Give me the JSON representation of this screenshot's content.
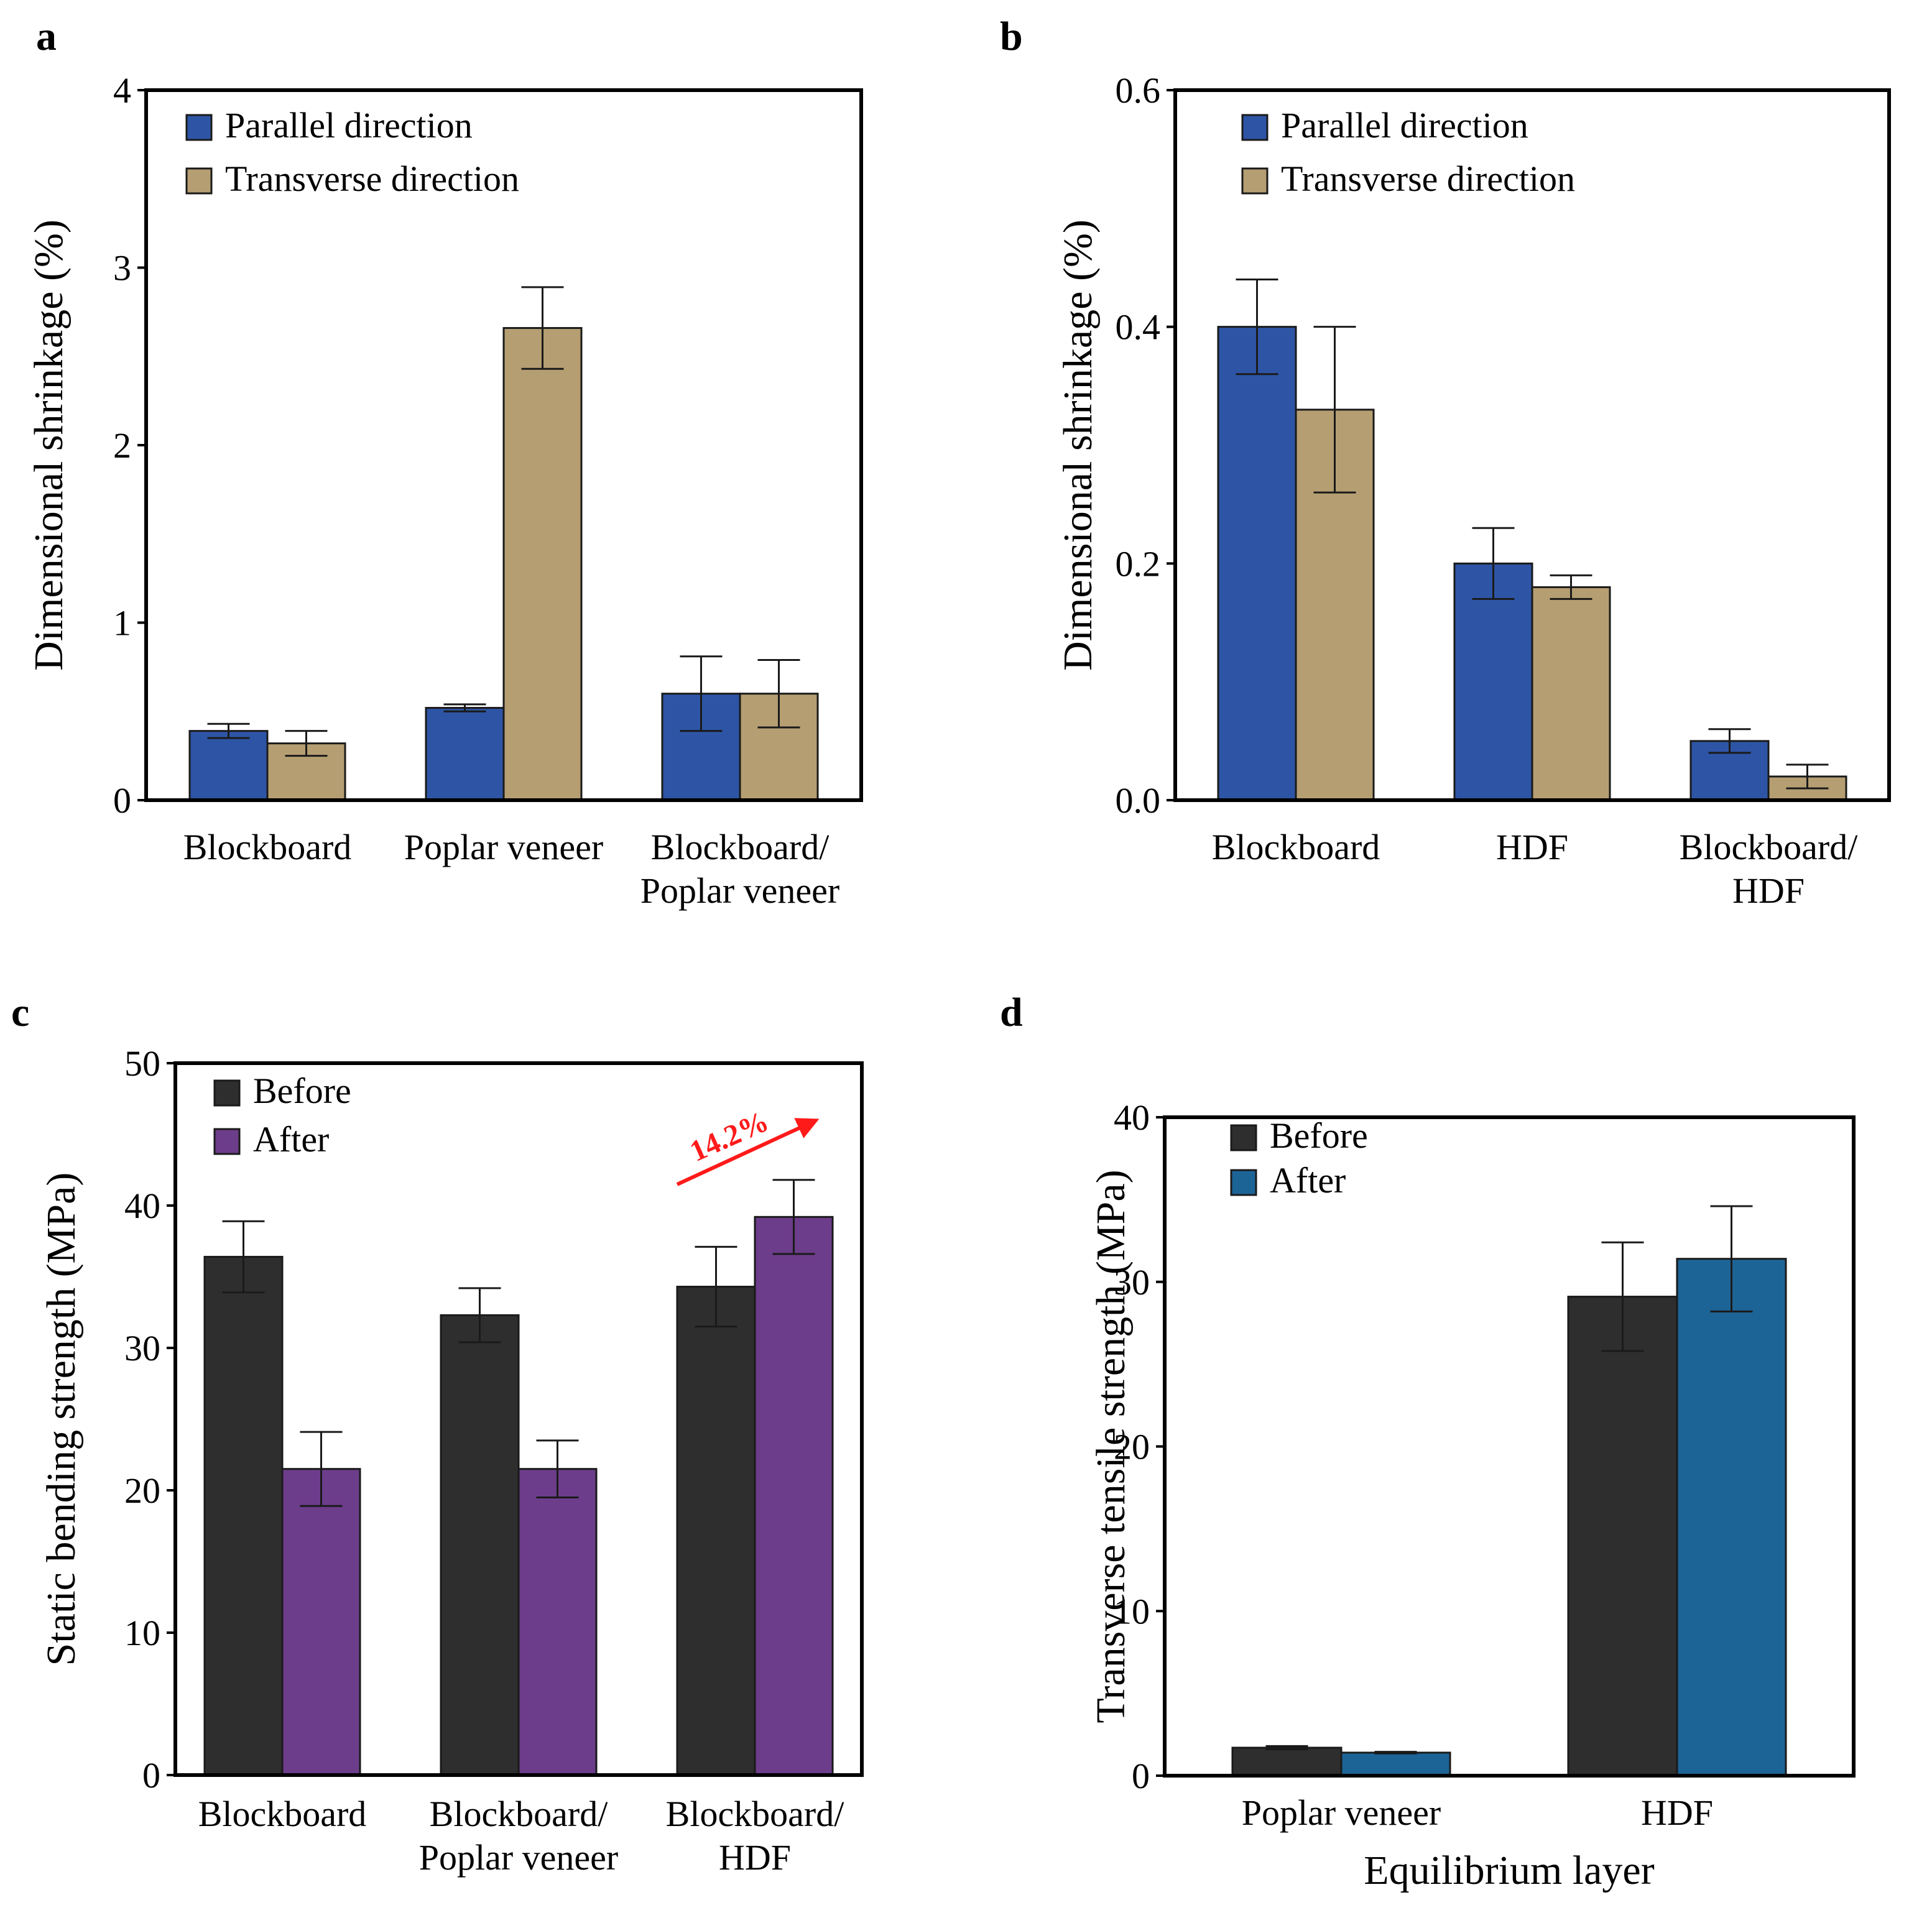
{
  "chart_data": [
    {
      "panel": "a",
      "type": "bar",
      "ylabel": "Dimensional shrinkage (%)",
      "xlabel": "",
      "ylim": [
        0,
        4
      ],
      "yticks": [
        0,
        1,
        2,
        3,
        4
      ],
      "ytick_labels": [
        "0",
        "1",
        "2",
        "3",
        "4"
      ],
      "grid": false,
      "legend_position": "top-left",
      "categories": [
        [
          "Blockboard"
        ],
        [
          "Poplar veneer"
        ],
        [
          "Blockboard/",
          "Poplar veneer"
        ]
      ],
      "series": [
        {
          "name": "Parallel direction",
          "color": "#2e55a5",
          "values": [
            0.39,
            0.52,
            0.6
          ],
          "errors": [
            0.04,
            0.02,
            0.21
          ]
        },
        {
          "name": "Transverse direction",
          "color": "#b59e72",
          "values": [
            0.32,
            2.66,
            0.6
          ],
          "errors": [
            0.07,
            0.23,
            0.19
          ]
        }
      ],
      "annotations": []
    },
    {
      "panel": "b",
      "type": "bar",
      "ylabel": "Dimensional shrinkage (%)",
      "xlabel": "",
      "ylim": [
        0,
        0.6
      ],
      "yticks": [
        0,
        0.2,
        0.4,
        0.6
      ],
      "ytick_labels": [
        "0.0",
        "0.2",
        "0.4",
        "0.6"
      ],
      "grid": false,
      "legend_position": "top-left",
      "categories": [
        [
          "Blockboard"
        ],
        [
          "HDF"
        ],
        [
          "Blockboard/",
          "HDF"
        ]
      ],
      "series": [
        {
          "name": "Parallel direction",
          "color": "#2e55a5",
          "values": [
            0.4,
            0.2,
            0.05
          ],
          "errors": [
            0.04,
            0.03,
            0.01
          ]
        },
        {
          "name": "Transverse direction",
          "color": "#b59e72",
          "values": [
            0.33,
            0.18,
            0.02
          ],
          "errors": [
            0.07,
            0.01,
            0.01
          ]
        }
      ],
      "annotations": []
    },
    {
      "panel": "c",
      "type": "bar",
      "ylabel": "Static bending strength (MPa)",
      "xlabel": "",
      "ylim": [
        0,
        50
      ],
      "yticks": [
        0,
        10,
        20,
        30,
        40,
        50
      ],
      "ytick_labels": [
        "0",
        "10",
        "20",
        "30",
        "40",
        "50"
      ],
      "grid": false,
      "legend_position": "top-left",
      "categories": [
        [
          "Blockboard"
        ],
        [
          "Blockboard/",
          "Poplar veneer"
        ],
        [
          "Blockboard/",
          "HDF"
        ]
      ],
      "series": [
        {
          "name": "Before",
          "color": "#2e2e2e",
          "values": [
            36.4,
            32.3,
            34.3
          ],
          "errors": [
            2.5,
            1.9,
            2.8
          ]
        },
        {
          "name": "After",
          "color": "#6c3d8a",
          "values": [
            21.5,
            21.5,
            39.2
          ],
          "errors": [
            2.6,
            2.0,
            2.6
          ]
        }
      ],
      "annotations": [
        {
          "text": "14.2%",
          "color": "#ff1a1a",
          "category_index": 2
        }
      ]
    },
    {
      "panel": "d",
      "type": "bar",
      "ylabel": "Transverse tensile strength (MPa)",
      "xlabel": "Equilibrium layer",
      "ylim": [
        0,
        40
      ],
      "yticks": [
        0,
        10,
        20,
        30,
        40
      ],
      "ytick_labels": [
        "0",
        "10",
        "20",
        "30",
        "40"
      ],
      "grid": false,
      "legend_position": "top-left",
      "categories": [
        [
          "Poplar veneer"
        ],
        [
          "HDF"
        ]
      ],
      "series": [
        {
          "name": "Before",
          "color": "#2e2e2e",
          "values": [
            1.7,
            29.1
          ],
          "errors": [
            0.1,
            3.3
          ]
        },
        {
          "name": "After",
          "color": "#1d6496",
          "values": [
            1.4,
            31.4
          ],
          "errors": [
            0.05,
            3.2
          ]
        }
      ],
      "annotations": []
    }
  ]
}
